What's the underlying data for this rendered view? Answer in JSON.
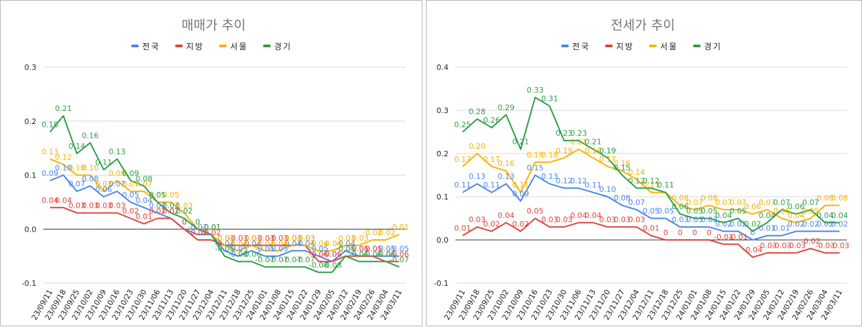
{
  "chart_data": [
    {
      "type": "line",
      "title": "매매가 추이",
      "legend_position": "top",
      "grid": true,
      "ylim": [
        -0.1,
        0.3
      ],
      "yticks": [
        "0.3",
        "0.2",
        "0.1",
        "0.0",
        "-0.1"
      ],
      "ytick_values": [
        0.3,
        0.2,
        0.1,
        0.0,
        -0.1
      ],
      "categories": [
        "23/09/11",
        "23/09/18",
        "23/09/25",
        "23/10/02",
        "23/10/09",
        "23/10/16",
        "23/10/23",
        "23/10/30",
        "23/11/06",
        "23/11/13",
        "23/11/20",
        "23/11/27",
        "23/12/04",
        "23/12/11",
        "23/12/18",
        "23/12/25",
        "24/01/01",
        "24/01/08",
        "24/01/15",
        "24/01/22",
        "24/01/29",
        "24/02/05",
        "24/02/12",
        "24/02/19",
        "24/02/26",
        "24/03/04",
        "24/03/11"
      ],
      "series": [
        {
          "name": "전국",
          "color": "#4a86e8",
          "values": [
            0.09,
            0.1,
            0.07,
            0.08,
            0.06,
            0.07,
            0.05,
            0.04,
            0.03,
            0.02,
            0.0,
            -0.01,
            -0.01,
            -0.04,
            -0.05,
            -0.04,
            -0.05,
            -0.05,
            -0.04,
            -0.04,
            -0.05,
            -0.06,
            -0.04,
            -0.05,
            -0.05,
            -0.05,
            -0.05
          ]
        },
        {
          "name": "지방",
          "color": "#e0443c",
          "values": [
            0.04,
            0.04,
            0.03,
            0.03,
            0.03,
            0.03,
            0.02,
            0.01,
            0.02,
            0.02,
            0.0,
            -0.02,
            -0.02,
            -0.03,
            -0.03,
            -0.03,
            -0.03,
            -0.03,
            -0.03,
            -0.03,
            -0.06,
            -0.06,
            -0.05,
            -0.05,
            -0.05,
            -0.06,
            -0.06
          ]
        },
        {
          "name": "서울",
          "color": "#f4b400",
          "values": [
            0.13,
            0.12,
            0.1,
            0.1,
            0.07,
            0.09,
            0.07,
            0.07,
            0.05,
            0.05,
            0.03,
            0.0,
            -0.01,
            -0.03,
            -0.04,
            -0.03,
            -0.04,
            -0.04,
            -0.03,
            -0.03,
            -0.04,
            -0.04,
            -0.03,
            -0.03,
            -0.02,
            -0.02,
            -0.01
          ]
        },
        {
          "name": "경기",
          "color": "#2e9e48",
          "values": [
            0.18,
            0.21,
            0.14,
            0.16,
            0.11,
            0.13,
            0.09,
            0.08,
            0.05,
            0.03,
            0.02,
            0.0,
            -0.01,
            -0.05,
            -0.06,
            -0.06,
            -0.07,
            -0.07,
            -0.07,
            -0.07,
            -0.08,
            -0.08,
            -0.05,
            -0.06,
            -0.06,
            -0.06,
            -0.07
          ]
        }
      ]
    },
    {
      "type": "line",
      "title": "전세가 추이",
      "legend_position": "top",
      "grid": true,
      "ylim": [
        -0.1,
        0.4
      ],
      "yticks": [
        "0.4",
        "0.3",
        "0.2",
        "0.1",
        "0.0",
        "-0.1"
      ],
      "ytick_values": [
        0.4,
        0.3,
        0.2,
        0.1,
        0.0,
        -0.1
      ],
      "categories": [
        "23/09/11",
        "23/09/18",
        "23/09/25",
        "23/10/02",
        "23/10/09",
        "23/10/16",
        "23/10/23",
        "23/10/30",
        "23/11/06",
        "23/11/13",
        "23/11/20",
        "23/11/27",
        "23/12/04",
        "23/12/11",
        "23/12/18",
        "23/12/25",
        "24/01/01",
        "24/01/08",
        "24/01/15",
        "24/01/22",
        "24/01/29",
        "24/02/05",
        "24/02/12",
        "24/02/19",
        "24/02/26",
        "24/03/04",
        "24/03/11"
      ],
      "series": [
        {
          "name": "전국",
          "color": "#4a86e8",
          "values": [
            0.11,
            0.13,
            0.11,
            0.13,
            0.09,
            0.15,
            0.13,
            0.12,
            0.12,
            0.11,
            0.1,
            0.08,
            0.07,
            0.05,
            0.05,
            0.03,
            0.03,
            0.03,
            0.02,
            0.02,
            0.0,
            0.01,
            0.01,
            0.02,
            0.02,
            0.02,
            0.02
          ]
        },
        {
          "name": "지방",
          "color": "#e0443c",
          "values": [
            0.01,
            0.03,
            0.02,
            0.04,
            0.02,
            0.05,
            0.03,
            0.03,
            0.04,
            0.04,
            0.03,
            0.03,
            0.03,
            0.01,
            0.0,
            0.0,
            0.0,
            0.0,
            -0.01,
            -0.01,
            -0.04,
            -0.03,
            -0.03,
            -0.03,
            -0.02,
            -0.03,
            -0.03
          ]
        },
        {
          "name": "서울",
          "color": "#f4b400",
          "values": [
            0.17,
            0.2,
            0.17,
            0.16,
            0.11,
            0.18,
            0.18,
            0.19,
            0.21,
            0.19,
            0.17,
            0.16,
            0.14,
            0.11,
            0.11,
            0.08,
            0.07,
            0.08,
            0.07,
            0.07,
            0.06,
            0.07,
            0.05,
            0.04,
            0.05,
            0.08,
            0.08
          ]
        },
        {
          "name": "경기",
          "color": "#2e9e48",
          "values": [
            0.25,
            0.28,
            0.26,
            0.29,
            0.21,
            0.33,
            0.31,
            0.23,
            0.23,
            0.21,
            0.19,
            0.15,
            0.12,
            0.12,
            0.11,
            0.06,
            0.05,
            0.05,
            0.04,
            0.05,
            0.02,
            0.04,
            0.07,
            0.06,
            0.07,
            0.04,
            0.04
          ]
        }
      ]
    }
  ]
}
